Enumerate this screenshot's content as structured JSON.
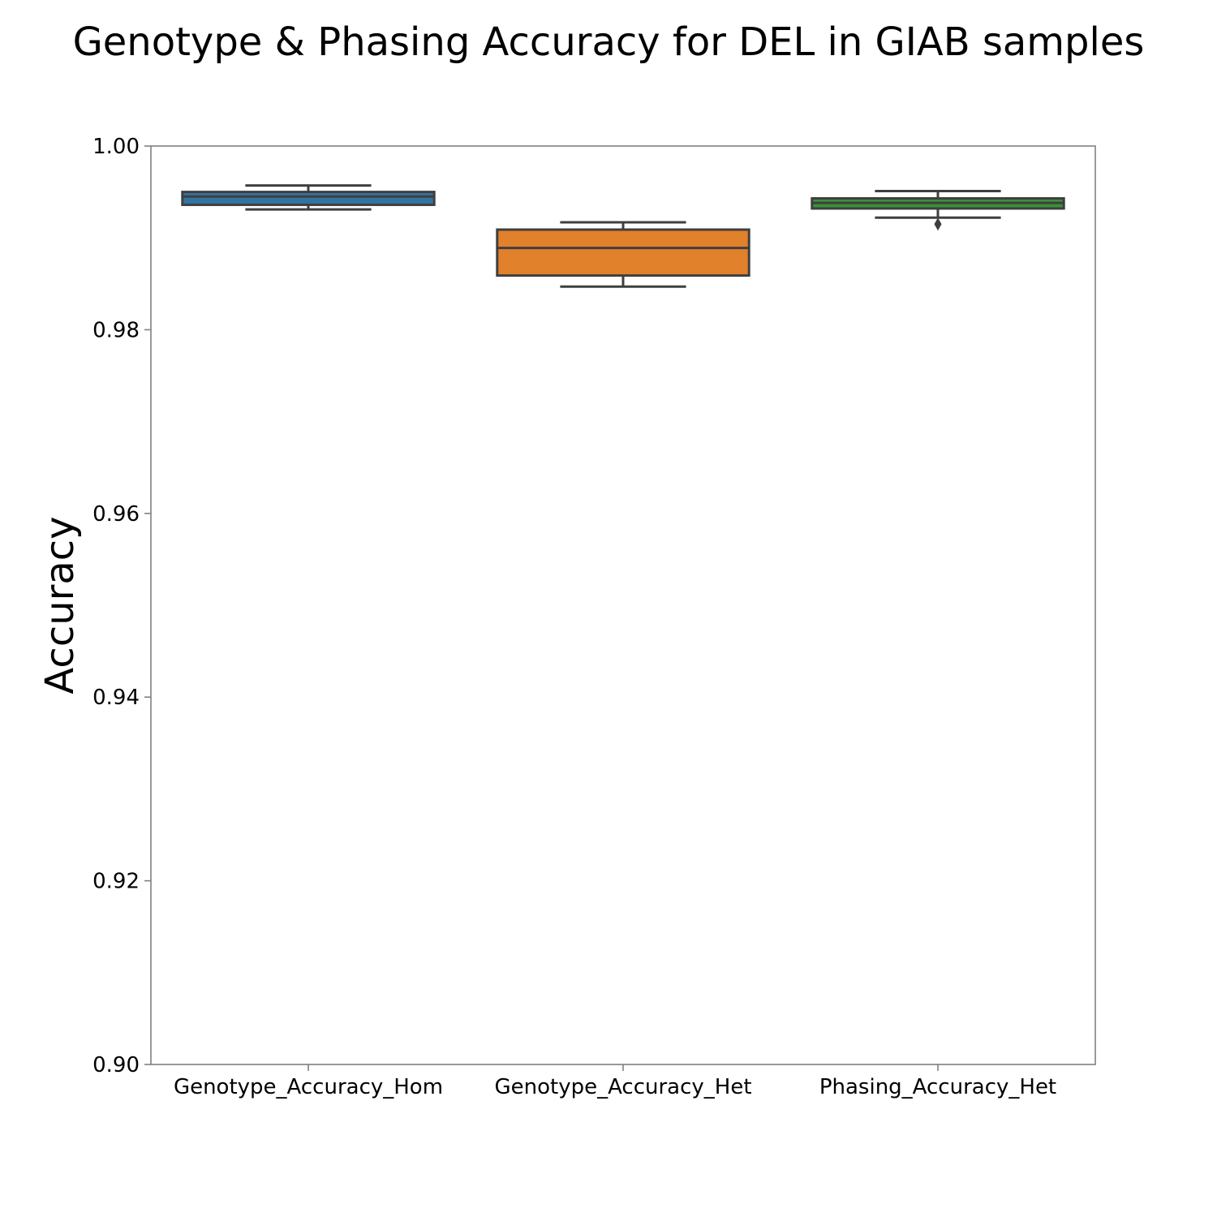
{
  "chart_data": {
    "type": "box",
    "title": "Genotype & Phasing Accuracy for DEL in GIAB samples",
    "xlabel": "",
    "ylabel": "Accuracy",
    "ylim": [
      0.9,
      1.0
    ],
    "y_ticks": [
      "0.90",
      "0.92",
      "0.94",
      "0.96",
      "0.98",
      "1.00"
    ],
    "grid": false,
    "categories": [
      "Genotype_Accuracy_Hom",
      "Genotype_Accuracy_Het",
      "Phasing_Accuracy_Het"
    ],
    "boxes": [
      {
        "category": "Genotype_Accuracy_Hom",
        "whisker_low": 0.9931,
        "q1": 0.9936,
        "median": 0.9945,
        "q3": 0.995,
        "whisker_high": 0.9957,
        "outliers": [],
        "color": "#3274a1"
      },
      {
        "category": "Genotype_Accuracy_Het",
        "whisker_low": 0.9847,
        "q1": 0.9859,
        "median": 0.9889,
        "q3": 0.9909,
        "whisker_high": 0.9917,
        "outliers": [],
        "color": "#e1812c"
      },
      {
        "category": "Phasing_Accuracy_Het",
        "whisker_low": 0.9922,
        "q1": 0.9932,
        "median": 0.9938,
        "q3": 0.9943,
        "whisker_high": 0.9951,
        "outliers": [
          0.9915
        ],
        "color": "#3a923a"
      }
    ]
  }
}
